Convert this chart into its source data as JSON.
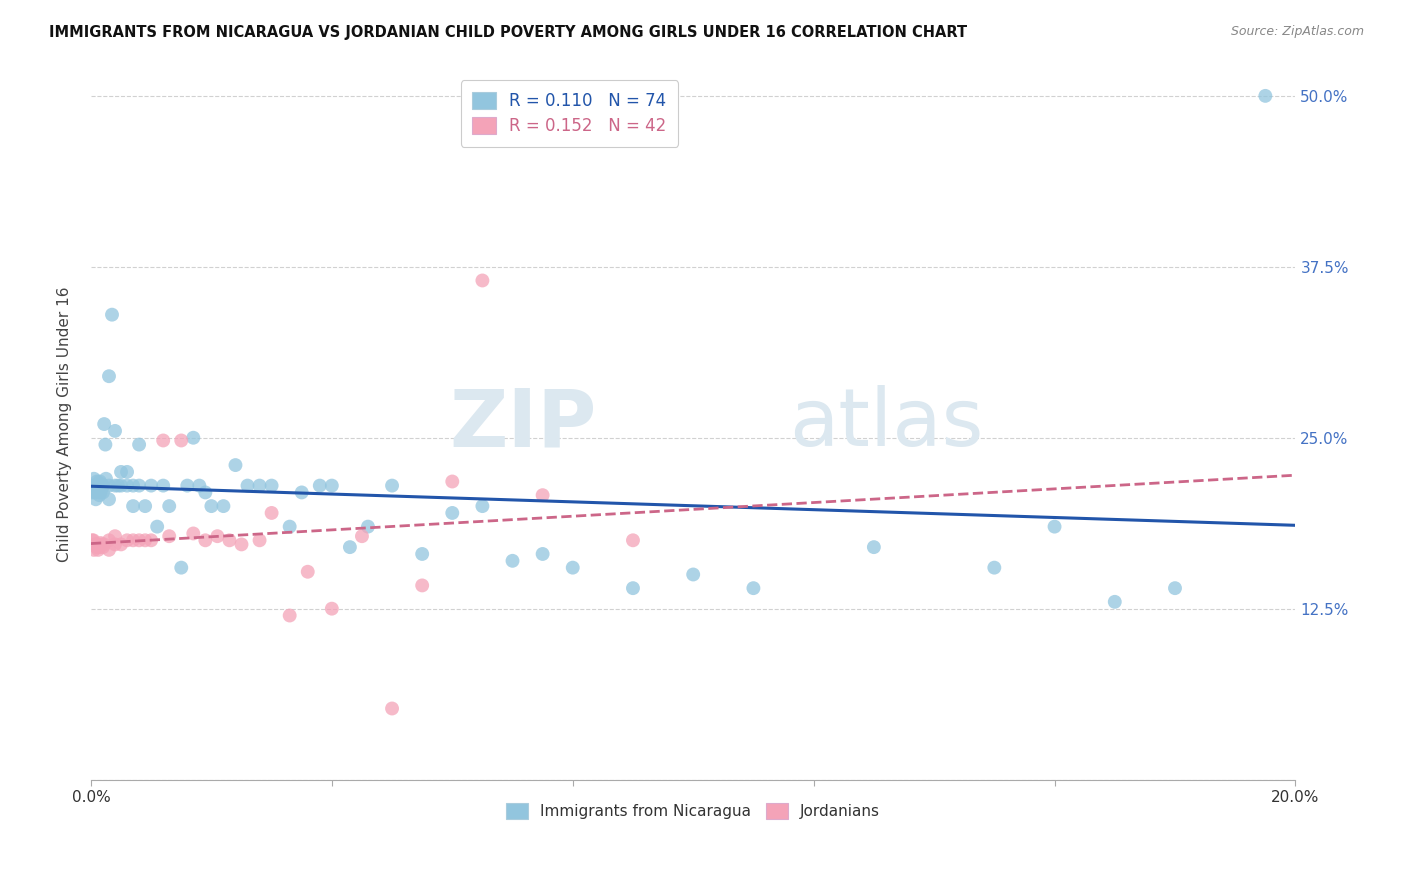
{
  "title": "IMMIGRANTS FROM NICARAGUA VS JORDANIAN CHILD POVERTY AMONG GIRLS UNDER 16 CORRELATION CHART",
  "source": "Source: ZipAtlas.com",
  "ylabel": "Child Poverty Among Girls Under 16",
  "yticks": [
    0.0,
    0.125,
    0.25,
    0.375,
    0.5
  ],
  "ytick_labels": [
    "",
    "12.5%",
    "25.0%",
    "37.5%",
    "50.0%"
  ],
  "legend_blue_R": "0.110",
  "legend_blue_N": "74",
  "legend_pink_R": "0.152",
  "legend_pink_N": "42",
  "legend_label_blue": "Immigrants from Nicaragua",
  "legend_label_pink": "Jordanians",
  "blue_color": "#92c5de",
  "pink_color": "#f4a3b8",
  "trendline_blue": "#2255aa",
  "trendline_pink": "#cc6688",
  "watermark_zip": "ZIP",
  "watermark_atlas": "atlas",
  "blue_scatter_x": [
    0.0002,
    0.0004,
    0.0005,
    0.0006,
    0.0007,
    0.0008,
    0.0009,
    0.001,
    0.001,
    0.0012,
    0.0013,
    0.0014,
    0.0015,
    0.0016,
    0.0017,
    0.0018,
    0.002,
    0.002,
    0.0022,
    0.0024,
    0.0025,
    0.003,
    0.003,
    0.003,
    0.0035,
    0.004,
    0.004,
    0.0045,
    0.005,
    0.005,
    0.006,
    0.006,
    0.007,
    0.007,
    0.008,
    0.008,
    0.009,
    0.01,
    0.011,
    0.012,
    0.013,
    0.015,
    0.016,
    0.017,
    0.018,
    0.019,
    0.02,
    0.022,
    0.024,
    0.026,
    0.028,
    0.03,
    0.033,
    0.035,
    0.038,
    0.04,
    0.043,
    0.046,
    0.05,
    0.055,
    0.06,
    0.065,
    0.07,
    0.075,
    0.08,
    0.09,
    0.1,
    0.11,
    0.13,
    0.15,
    0.16,
    0.17,
    0.18,
    0.195
  ],
  "blue_scatter_y": [
    0.21,
    0.215,
    0.22,
    0.215,
    0.21,
    0.205,
    0.215,
    0.218,
    0.212,
    0.215,
    0.213,
    0.208,
    0.218,
    0.21,
    0.212,
    0.216,
    0.215,
    0.21,
    0.26,
    0.245,
    0.22,
    0.295,
    0.215,
    0.205,
    0.34,
    0.255,
    0.215,
    0.215,
    0.225,
    0.215,
    0.225,
    0.215,
    0.215,
    0.2,
    0.245,
    0.215,
    0.2,
    0.215,
    0.185,
    0.215,
    0.2,
    0.155,
    0.215,
    0.25,
    0.215,
    0.21,
    0.2,
    0.2,
    0.23,
    0.215,
    0.215,
    0.215,
    0.185,
    0.21,
    0.215,
    0.215,
    0.17,
    0.185,
    0.215,
    0.165,
    0.195,
    0.2,
    0.16,
    0.165,
    0.155,
    0.14,
    0.15,
    0.14,
    0.17,
    0.155,
    0.185,
    0.13,
    0.14,
    0.5
  ],
  "pink_scatter_x": [
    0.0002,
    0.0004,
    0.0005,
    0.0007,
    0.0009,
    0.001,
    0.0012,
    0.0014,
    0.0016,
    0.0018,
    0.002,
    0.0022,
    0.003,
    0.003,
    0.004,
    0.004,
    0.005,
    0.006,
    0.007,
    0.008,
    0.009,
    0.01,
    0.012,
    0.013,
    0.015,
    0.017,
    0.019,
    0.021,
    0.023,
    0.025,
    0.028,
    0.03,
    0.033,
    0.036,
    0.04,
    0.045,
    0.05,
    0.055,
    0.06,
    0.065,
    0.075,
    0.09
  ],
  "pink_scatter_y": [
    0.175,
    0.175,
    0.168,
    0.172,
    0.17,
    0.172,
    0.168,
    0.17,
    0.173,
    0.172,
    0.17,
    0.172,
    0.175,
    0.168,
    0.178,
    0.172,
    0.172,
    0.175,
    0.175,
    0.175,
    0.175,
    0.175,
    0.248,
    0.178,
    0.248,
    0.18,
    0.175,
    0.178,
    0.175,
    0.172,
    0.175,
    0.195,
    0.12,
    0.152,
    0.125,
    0.178,
    0.052,
    0.142,
    0.218,
    0.365,
    0.208,
    0.175
  ]
}
